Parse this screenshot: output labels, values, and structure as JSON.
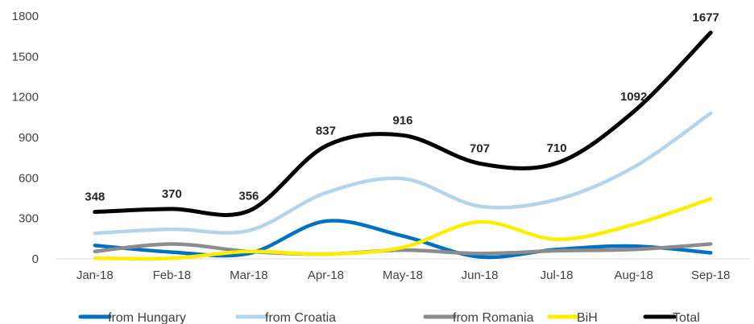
{
  "chart_data": {
    "type": "line",
    "title": "",
    "xlabel": "",
    "ylabel": "",
    "categories": [
      "Jan-18",
      "Feb-18",
      "Mar-18",
      "Apr-18",
      "May-18",
      "Jun-18",
      "Jul-18",
      "Aug-18",
      "Sep-18"
    ],
    "ylim": [
      0,
      1800
    ],
    "yticks": [
      0,
      300,
      600,
      900,
      1200,
      1500,
      1800
    ],
    "grid": false,
    "legend_position": "bottom",
    "series": [
      {
        "name": "from Hungary",
        "color": "#0070c0",
        "values": [
          100,
          50,
          40,
          280,
          170,
          15,
          70,
          95,
          45
        ]
      },
      {
        "name": "from Croatia",
        "color": "#b4d4ec",
        "values": [
          190,
          220,
          210,
          490,
          595,
          390,
          440,
          680,
          1080
        ]
      },
      {
        "name": "from Romania",
        "color": "#8c8c8c",
        "values": [
          55,
          110,
          55,
          35,
          65,
          40,
          60,
          70,
          110
        ]
      },
      {
        "name": "BiH",
        "color": "#ffed00",
        "values": [
          5,
          5,
          55,
          35,
          85,
          275,
          145,
          255,
          445
        ]
      },
      {
        "name": "Total",
        "color": "#000000",
        "values": [
          348,
          370,
          356,
          837,
          916,
          707,
          710,
          1092,
          1677
        ],
        "data_labels": [
          "348",
          "370",
          "356",
          "837",
          "916",
          "707",
          "710",
          "1092",
          "1677"
        ]
      }
    ]
  }
}
